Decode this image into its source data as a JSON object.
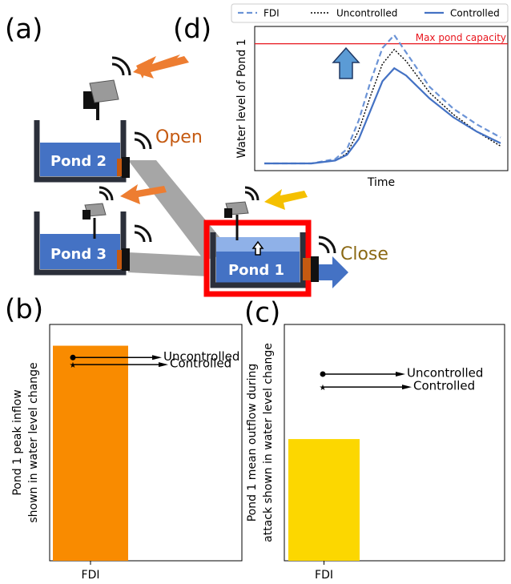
{
  "panels": {
    "a": "(a)",
    "b": "(b)",
    "c": "(c)",
    "d": "(d)"
  },
  "diagram": {
    "ponds": [
      "Pond 2",
      "Pond 3",
      "Pond 1"
    ],
    "open": "Open",
    "close": "Close"
  },
  "chart_d": {
    "type": "line",
    "xlabel": "Time",
    "ylabel": "Water level of Pond 1",
    "annotation": "Max pond capacity",
    "capacity": 0.88,
    "capacity_color": "#e8141c",
    "xlim": [
      0,
      1
    ],
    "ylim": [
      0,
      1
    ],
    "x": [
      0,
      0.1,
      0.2,
      0.3,
      0.35,
      0.4,
      0.45,
      0.5,
      0.55,
      0.6,
      0.7,
      0.8,
      0.9,
      1.0
    ],
    "series": [
      {
        "name": "FDI",
        "color": "#6b93d6",
        "values": [
          0.05,
          0.05,
          0.05,
          0.08,
          0.15,
          0.35,
          0.62,
          0.85,
          0.94,
          0.82,
          0.58,
          0.43,
          0.32,
          0.23
        ]
      },
      {
        "name": "Uncontrolled",
        "color": "#000000",
        "values": [
          0.05,
          0.05,
          0.05,
          0.07,
          0.12,
          0.28,
          0.52,
          0.74,
          0.84,
          0.76,
          0.54,
          0.39,
          0.27,
          0.17
        ]
      },
      {
        "name": "Controlled",
        "color": "#4472c4",
        "values": [
          0.05,
          0.05,
          0.05,
          0.07,
          0.11,
          0.22,
          0.42,
          0.62,
          0.71,
          0.66,
          0.5,
          0.37,
          0.27,
          0.19
        ]
      }
    ]
  },
  "chart_b": {
    "type": "bar",
    "ylabel": [
      "Pond 1 peak inflow",
      "shown in water level change"
    ],
    "categories": [
      "FDI"
    ],
    "values": [
      0.91
    ],
    "color": "#f98b00",
    "ylim": [
      0,
      1
    ],
    "markers": [
      {
        "name": "Uncontrolled",
        "value": 0.86
      },
      {
        "name": "Controlled",
        "value": 0.83
      }
    ]
  },
  "chart_c": {
    "type": "bar",
    "ylabel": [
      "Pond 1 mean outflow during",
      "attack shown in water level change"
    ],
    "categories": [
      "FDI"
    ],
    "values": [
      0.515
    ],
    "color": "#fcd700",
    "ylim": [
      0,
      1
    ],
    "markers": [
      {
        "name": "Uncontrolled",
        "value": 0.79
      },
      {
        "name": "Controlled",
        "value": 0.735
      }
    ]
  }
}
